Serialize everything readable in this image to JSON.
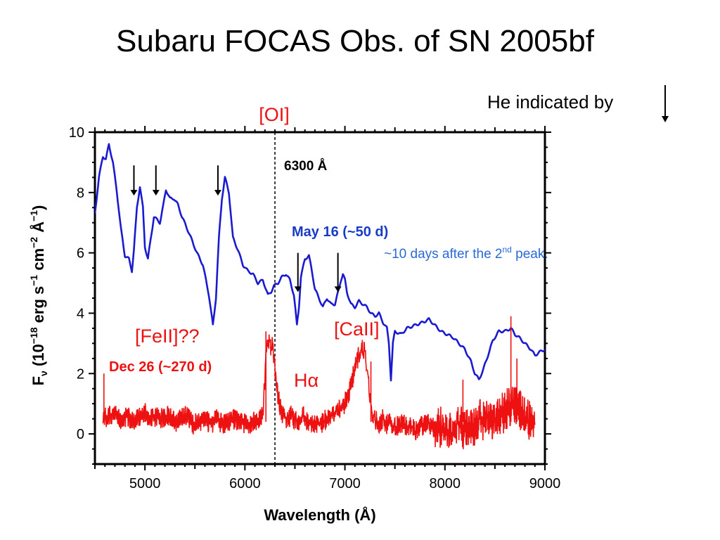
{
  "slide": {
    "title": "Subaru FOCAS Obs. of SN 2005bf",
    "he_note": "He indicated by"
  },
  "chart_data": {
    "type": "line",
    "xlabel": "Wavelength (Å)",
    "ylabel": "F_ν (10^−18 erg s^−1 cm^−2 Å^−1)",
    "xlim": [
      4500,
      9000
    ],
    "ylim": [
      -1,
      10
    ],
    "xticks": [
      5000,
      6000,
      7000,
      8000,
      9000
    ],
    "yticks": [
      0,
      2,
      4,
      6,
      8,
      10
    ],
    "grid": false,
    "series": [
      {
        "name": "May 16 (~50 d)",
        "color": "#1a1ad0",
        "x": [
          4500,
          4540,
          4580,
          4610,
          4640,
          4680,
          4720,
          4760,
          4800,
          4840,
          4870,
          4890,
          4920,
          4950,
          4980,
          5000,
          5030,
          5060,
          5090,
          5120,
          5150,
          5180,
          5210,
          5250,
          5290,
          5330,
          5370,
          5410,
          5460,
          5520,
          5580,
          5640,
          5680,
          5710,
          5740,
          5770,
          5800,
          5840,
          5880,
          5930,
          5980,
          6030,
          6080,
          6130,
          6180,
          6230,
          6260,
          6290,
          6330,
          6370,
          6410,
          6450,
          6490,
          6520,
          6540,
          6560,
          6600,
          6640,
          6670,
          6700,
          6740,
          6780,
          6820,
          6860,
          6900,
          6940,
          6960,
          6980,
          7000,
          7020,
          7060,
          7100,
          7140,
          7180,
          7220,
          7260,
          7300,
          7340,
          7380,
          7420,
          7440,
          7460,
          7480,
          7500,
          7560,
          7620,
          7700,
          7780,
          7840,
          7900,
          7960,
          8020,
          8080,
          8140,
          8200,
          8260,
          8300,
          8340,
          8380,
          8420,
          8480,
          8540,
          8600,
          8660,
          8700,
          8740,
          8800,
          8860,
          8900,
          8940,
          9000
        ],
        "values": [
          7.3,
          8.5,
          9.2,
          9.1,
          9.6,
          9.0,
          8.0,
          6.8,
          5.9,
          5.8,
          5.4,
          6.1,
          7.5,
          8.2,
          7.5,
          6.2,
          5.8,
          6.5,
          7.2,
          7.1,
          7.0,
          7.5,
          8.1,
          7.8,
          7.8,
          7.6,
          7.2,
          6.9,
          6.5,
          6.0,
          5.6,
          4.6,
          3.6,
          4.5,
          6.5,
          7.8,
          8.5,
          8.0,
          6.5,
          6.1,
          5.6,
          5.4,
          5.3,
          5.0,
          5.1,
          4.6,
          4.7,
          4.9,
          5.0,
          5.2,
          5.3,
          5.1,
          4.6,
          3.6,
          4.2,
          5.2,
          5.8,
          5.9,
          5.4,
          4.8,
          4.5,
          4.2,
          4.5,
          4.3,
          4.3,
          4.8,
          5.1,
          5.3,
          5.1,
          4.7,
          4.3,
          4.2,
          4.4,
          4.3,
          4.2,
          4.0,
          3.9,
          4.0,
          3.7,
          3.5,
          3.0,
          1.8,
          3.0,
          3.4,
          3.3,
          3.5,
          3.6,
          3.7,
          3.8,
          3.6,
          3.4,
          3.3,
          3.2,
          3.0,
          2.8,
          2.4,
          2.0,
          1.8,
          2.1,
          2.5,
          3.1,
          3.4,
          3.4,
          3.5,
          3.3,
          3.2,
          3.0,
          2.8,
          2.6,
          2.7,
          2.8
        ]
      },
      {
        "name": "Dec 26 (~270 d)",
        "color": "#ee1111",
        "x": [
          4580,
          4640,
          4700,
          4760,
          4820,
          4880,
          4940,
          5000,
          5060,
          5120,
          5180,
          5240,
          5300,
          5360,
          5420,
          5480,
          5540,
          5600,
          5660,
          5720,
          5780,
          5840,
          5900,
          5960,
          6020,
          6080,
          6140,
          6180,
          6210,
          6230,
          6250,
          6270,
          6290,
          6320,
          6350,
          6380,
          6420,
          6460,
          6500,
          6540,
          6580,
          6620,
          6660,
          6700,
          6740,
          6780,
          6820,
          6860,
          6900,
          6940,
          6980,
          7020,
          7060,
          7100,
          7140,
          7180,
          7200,
          7220,
          7240,
          7260,
          7280,
          7300,
          7320,
          7350,
          7380,
          7420,
          7460,
          7500,
          7540,
          7580,
          7620,
          7660,
          7700,
          7740,
          7780,
          7820,
          7860,
          7900,
          7940,
          7980,
          8020,
          8060,
          8100,
          8140,
          8180,
          8220,
          8260,
          8300,
          8340,
          8380,
          8420,
          8460,
          8500,
          8540,
          8580,
          8620,
          8660,
          8700,
          8740,
          8780,
          8820,
          8860,
          8900
        ],
        "values": [
          0.5,
          0.6,
          0.7,
          0.5,
          0.6,
          0.4,
          0.6,
          0.7,
          0.5,
          0.6,
          0.5,
          0.6,
          0.4,
          0.5,
          0.6,
          0.3,
          0.4,
          0.5,
          0.3,
          0.5,
          0.3,
          0.4,
          0.5,
          0.4,
          0.3,
          0.4,
          0.5,
          0.7,
          2.5,
          3.2,
          2.8,
          3.0,
          2.4,
          1.5,
          0.9,
          0.6,
          0.5,
          0.6,
          0.5,
          0.4,
          0.6,
          0.4,
          0.3,
          0.4,
          0.3,
          0.4,
          0.5,
          0.6,
          0.7,
          0.8,
          0.9,
          1.2,
          1.6,
          2.2,
          2.6,
          2.9,
          2.6,
          2.2,
          1.5,
          0.9,
          0.6,
          0.5,
          0.4,
          0.3,
          0.5,
          0.3,
          0.4,
          0.2,
          0.3,
          0.4,
          0.2,
          0.3,
          0.1,
          0.2,
          0.3,
          0.4,
          0.3,
          0.2,
          0.3,
          0.1,
          0.2,
          0.0,
          0.2,
          0.4,
          0.1,
          0.3,
          0.2,
          0.3,
          0.5,
          0.4,
          0.6,
          0.5,
          0.4,
          0.5,
          0.7,
          0.8,
          1.0,
          0.9,
          0.8,
          0.6,
          0.5,
          0.4,
          0.3
        ]
      }
    ],
    "annotations": {
      "line_marker": {
        "label": "6300 Å",
        "x": 6300,
        "top_label": "[OI]"
      },
      "arrows_x": [
        4890,
        5110,
        5730,
        6530,
        6930
      ],
      "may_label": "May 16 (~50 d)",
      "may_sub_before": "~10 days after the 2",
      "may_sub_sup": "nd",
      "may_sub_after": " peak.",
      "dec_label": "Dec 26 (~270 d)",
      "feii": "[FeII]??",
      "caii": "[CaII]",
      "halpha": "Hα"
    }
  }
}
